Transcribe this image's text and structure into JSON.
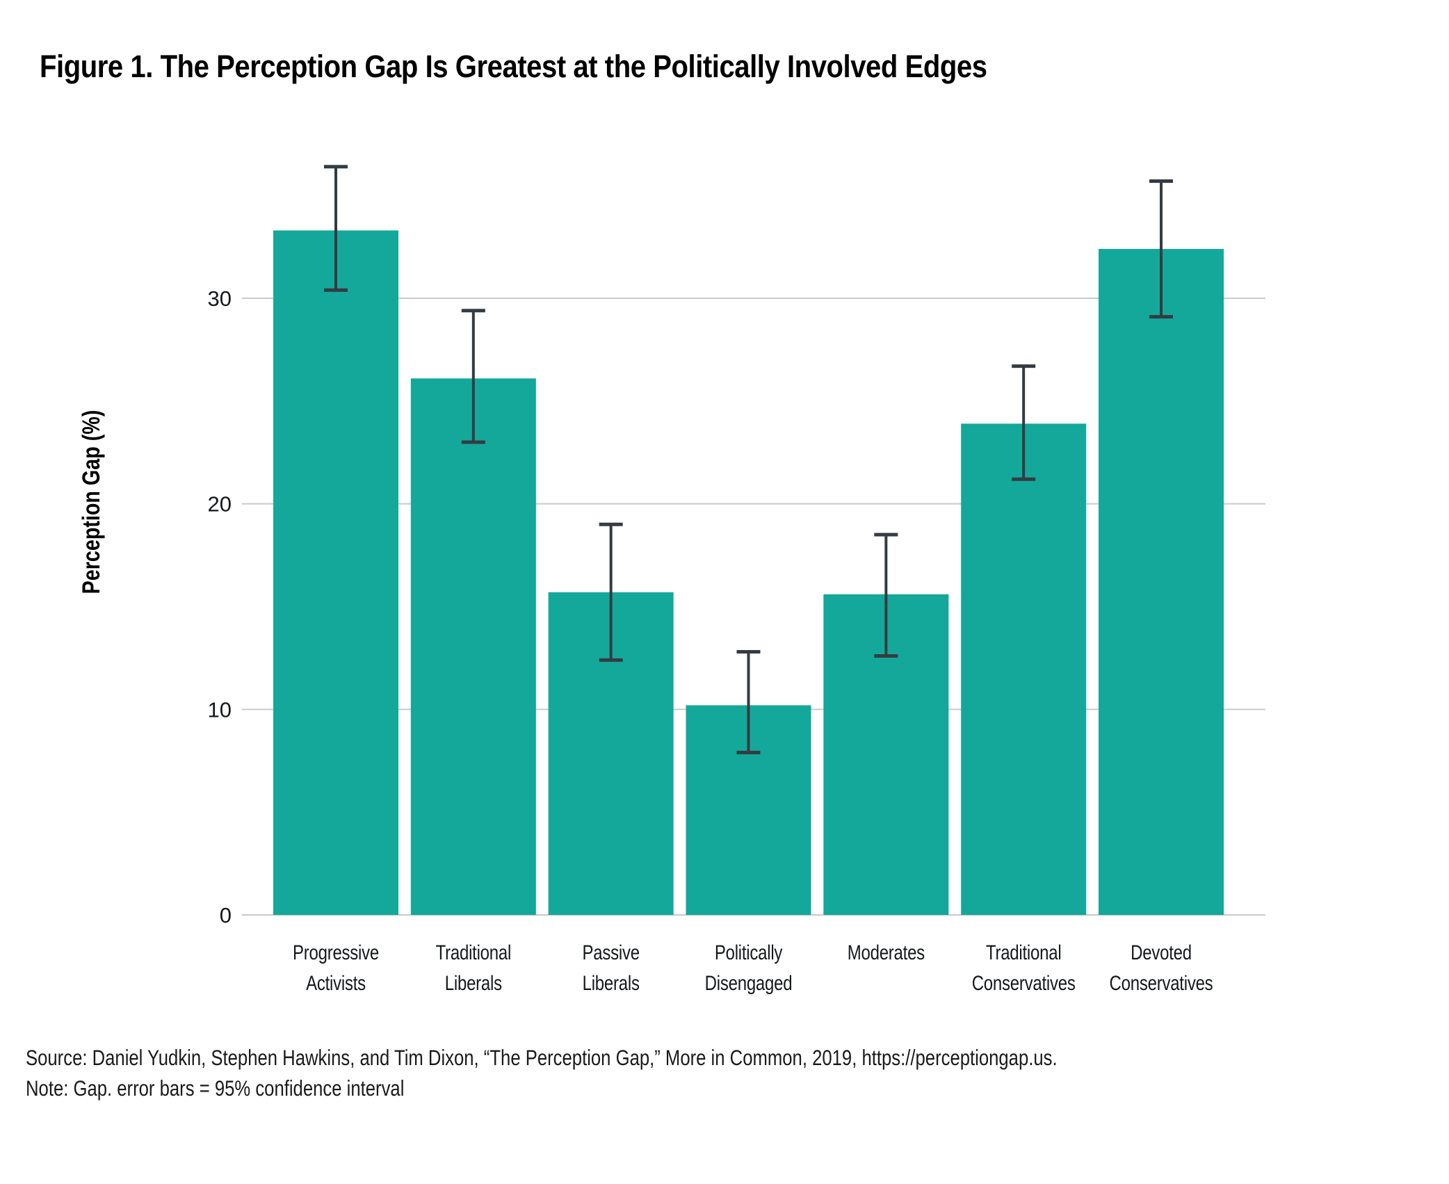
{
  "figure": {
    "title": "Figure 1. The Perception Gap Is Greatest at the Politically Involved Edges",
    "source": "Source: Daniel Yudkin, Stephen Hawkins, and Tim Dixon, “The Perception Gap,” More in Common, 2019, https://perceptiongap.us.",
    "note": "Note: Gap. error bars = 95% confidence interval"
  },
  "colors": {
    "background": "#FFFFFF",
    "bar": "#14A89B",
    "error_bar": "#343B42",
    "gridline": "#C8CBCA",
    "text": "#15181A",
    "title_text": "#000000"
  },
  "chart_data": {
    "type": "bar",
    "title": "Figure 1. The Perception Gap Is Greatest at the Politically Involved Edges",
    "xlabel": "",
    "ylabel": "Perception Gap (%)",
    "categories": [
      "Progressive Activists",
      "Traditional Liberals",
      "Passive Liberals",
      "Politically Disengaged",
      "Moderates",
      "Traditional Conservatives",
      "Devoted Conservatives"
    ],
    "values": [
      33.3,
      26.1,
      15.7,
      10.2,
      15.6,
      23.9,
      32.4
    ],
    "error_low": [
      30.4,
      23.0,
      12.4,
      7.9,
      12.6,
      21.2,
      29.1
    ],
    "error_high": [
      36.4,
      29.4,
      19.0,
      12.8,
      18.5,
      26.7,
      35.7
    ],
    "error_bar_meaning": "95% confidence interval",
    "yticks": [
      0,
      10,
      20,
      30
    ],
    "ylim": [
      0,
      37.5
    ],
    "grid": "horizontal gridlines at y ticks, drawn behind bars",
    "legend": "none",
    "bar_color": "#14A89B"
  }
}
